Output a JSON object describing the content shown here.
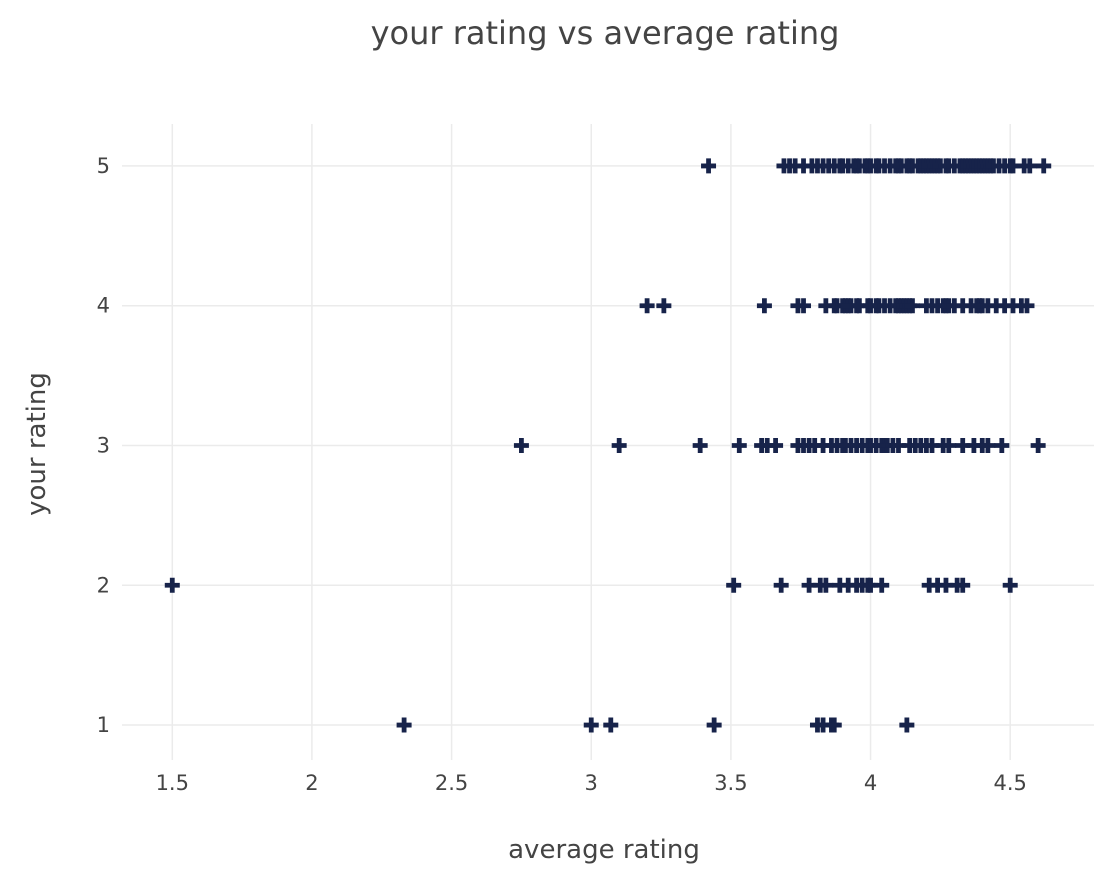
{
  "chart_data": {
    "type": "scatter",
    "title": "your rating vs average rating",
    "xlabel": "average rating",
    "ylabel": "your rating",
    "xlim": [
      1.32,
      4.8
    ],
    "ylim": [
      0.75,
      5.3
    ],
    "xticks": [
      1.5,
      2,
      2.5,
      3,
      3.5,
      4,
      4.5
    ],
    "xtick_labels": [
      "1.5",
      "2",
      "2.5",
      "3",
      "3.5",
      "4",
      "4.5"
    ],
    "yticks": [
      1,
      2,
      3,
      4,
      5
    ],
    "ytick_labels": [
      "1",
      "2",
      "3",
      "4",
      "5"
    ],
    "grid": true,
    "marker": "cross",
    "marker_color": "#17234a",
    "series": [
      {
        "points": [
          [
            3.42,
            5
          ],
          [
            3.69,
            5
          ],
          [
            3.71,
            5
          ],
          [
            3.73,
            5
          ],
          [
            3.76,
            5
          ],
          [
            3.79,
            5
          ],
          [
            3.81,
            5
          ],
          [
            3.83,
            5
          ],
          [
            3.85,
            5
          ],
          [
            3.87,
            5
          ],
          [
            3.89,
            5
          ],
          [
            3.9,
            5
          ],
          [
            3.92,
            5
          ],
          [
            3.94,
            5
          ],
          [
            3.95,
            5
          ],
          [
            3.96,
            5
          ],
          [
            3.98,
            5
          ],
          [
            3.99,
            5
          ],
          [
            4.0,
            5
          ],
          [
            4.02,
            5
          ],
          [
            4.03,
            5
          ],
          [
            4.05,
            5
          ],
          [
            4.07,
            5
          ],
          [
            4.09,
            5
          ],
          [
            4.1,
            5
          ],
          [
            4.11,
            5
          ],
          [
            4.13,
            5
          ],
          [
            4.14,
            5
          ],
          [
            4.15,
            5
          ],
          [
            4.17,
            5
          ],
          [
            4.18,
            5
          ],
          [
            4.19,
            5
          ],
          [
            4.2,
            5
          ],
          [
            4.21,
            5
          ],
          [
            4.22,
            5
          ],
          [
            4.23,
            5
          ],
          [
            4.24,
            5
          ],
          [
            4.25,
            5
          ],
          [
            4.27,
            5
          ],
          [
            4.28,
            5
          ],
          [
            4.3,
            5
          ],
          [
            4.32,
            5
          ],
          [
            4.33,
            5
          ],
          [
            4.34,
            5
          ],
          [
            4.35,
            5
          ],
          [
            4.36,
            5
          ],
          [
            4.37,
            5
          ],
          [
            4.38,
            5
          ],
          [
            4.39,
            5
          ],
          [
            4.4,
            5
          ],
          [
            4.41,
            5
          ],
          [
            4.42,
            5
          ],
          [
            4.43,
            5
          ],
          [
            4.44,
            5
          ],
          [
            4.46,
            5
          ],
          [
            4.48,
            5
          ],
          [
            4.5,
            5
          ],
          [
            4.51,
            5
          ],
          [
            4.55,
            5
          ],
          [
            4.57,
            5
          ],
          [
            4.62,
            5
          ],
          [
            3.2,
            4
          ],
          [
            3.26,
            4
          ],
          [
            3.62,
            4
          ],
          [
            3.74,
            4
          ],
          [
            3.76,
            4
          ],
          [
            3.84,
            4
          ],
          [
            3.87,
            4
          ],
          [
            3.88,
            4
          ],
          [
            3.9,
            4
          ],
          [
            3.91,
            4
          ],
          [
            3.92,
            4
          ],
          [
            3.93,
            4
          ],
          [
            3.95,
            4
          ],
          [
            3.96,
            4
          ],
          [
            3.99,
            4
          ],
          [
            4.0,
            4
          ],
          [
            4.02,
            4
          ],
          [
            4.03,
            4
          ],
          [
            4.05,
            4
          ],
          [
            4.07,
            4
          ],
          [
            4.09,
            4
          ],
          [
            4.1,
            4
          ],
          [
            4.11,
            4
          ],
          [
            4.12,
            4
          ],
          [
            4.13,
            4
          ],
          [
            4.14,
            4
          ],
          [
            4.15,
            4
          ],
          [
            4.2,
            4
          ],
          [
            4.22,
            4
          ],
          [
            4.24,
            4
          ],
          [
            4.26,
            4
          ],
          [
            4.27,
            4
          ],
          [
            4.28,
            4
          ],
          [
            4.3,
            4
          ],
          [
            4.33,
            4
          ],
          [
            4.36,
            4
          ],
          [
            4.38,
            4
          ],
          [
            4.39,
            4
          ],
          [
            4.4,
            4
          ],
          [
            4.42,
            4
          ],
          [
            4.45,
            4
          ],
          [
            4.48,
            4
          ],
          [
            4.51,
            4
          ],
          [
            4.54,
            4
          ],
          [
            4.56,
            4
          ],
          [
            2.75,
            3
          ],
          [
            3.1,
            3
          ],
          [
            3.39,
            3
          ],
          [
            3.53,
            3
          ],
          [
            3.61,
            3
          ],
          [
            3.63,
            3
          ],
          [
            3.66,
            3
          ],
          [
            3.74,
            3
          ],
          [
            3.76,
            3
          ],
          [
            3.78,
            3
          ],
          [
            3.8,
            3
          ],
          [
            3.83,
            3
          ],
          [
            3.86,
            3
          ],
          [
            3.88,
            3
          ],
          [
            3.9,
            3
          ],
          [
            3.91,
            3
          ],
          [
            3.93,
            3
          ],
          [
            3.95,
            3
          ],
          [
            3.97,
            3
          ],
          [
            3.99,
            3
          ],
          [
            4.0,
            3
          ],
          [
            4.02,
            3
          ],
          [
            4.04,
            3
          ],
          [
            4.05,
            3
          ],
          [
            4.06,
            3
          ],
          [
            4.08,
            3
          ],
          [
            4.1,
            3
          ],
          [
            4.14,
            3
          ],
          [
            4.16,
            3
          ],
          [
            4.18,
            3
          ],
          [
            4.2,
            3
          ],
          [
            4.22,
            3
          ],
          [
            4.26,
            3
          ],
          [
            4.28,
            3
          ],
          [
            4.33,
            3
          ],
          [
            4.37,
            3
          ],
          [
            4.4,
            3
          ],
          [
            4.42,
            3
          ],
          [
            4.47,
            3
          ],
          [
            4.6,
            3
          ],
          [
            1.5,
            2
          ],
          [
            3.51,
            2
          ],
          [
            3.68,
            2
          ],
          [
            3.78,
            2
          ],
          [
            3.82,
            2
          ],
          [
            3.84,
            2
          ],
          [
            3.89,
            2
          ],
          [
            3.92,
            2
          ],
          [
            3.95,
            2
          ],
          [
            3.97,
            2
          ],
          [
            3.99,
            2
          ],
          [
            4.0,
            2
          ],
          [
            4.04,
            2
          ],
          [
            4.21,
            2
          ],
          [
            4.24,
            2
          ],
          [
            4.27,
            2
          ],
          [
            4.31,
            2
          ],
          [
            4.33,
            2
          ],
          [
            4.5,
            2
          ],
          [
            2.33,
            1
          ],
          [
            3.0,
            1
          ],
          [
            3.07,
            1
          ],
          [
            3.44,
            1
          ],
          [
            3.81,
            1
          ],
          [
            3.83,
            1
          ],
          [
            3.86,
            1
          ],
          [
            3.87,
            1
          ],
          [
            4.13,
            1
          ]
        ]
      }
    ]
  }
}
